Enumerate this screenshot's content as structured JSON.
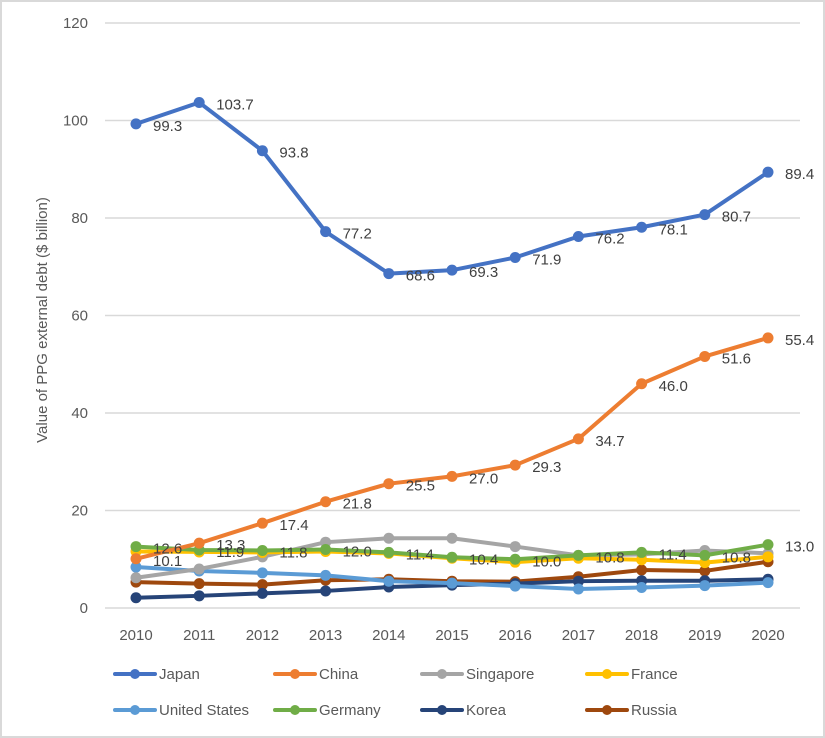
{
  "chart_data": {
    "type": "line",
    "title": "",
    "xlabel": "",
    "ylabel": "Value of PPG external debt  ($ billion)",
    "ylim": [
      0,
      120
    ],
    "yticks": [
      0,
      20,
      40,
      60,
      80,
      100,
      120
    ],
    "grid": true,
    "legend_position": "bottom",
    "x": [
      "2010",
      "2011",
      "2012",
      "2013",
      "2014",
      "2015",
      "2016",
      "2017",
      "2018",
      "2019",
      "2020"
    ],
    "series": [
      {
        "name": "Japan",
        "color": "#4472C4",
        "labeled": true,
        "values": [
          99.3,
          103.7,
          93.8,
          77.2,
          68.6,
          69.3,
          71.9,
          76.2,
          78.1,
          80.7,
          89.4
        ],
        "labels": [
          "99.3",
          "103.7",
          "93.8",
          "77.2",
          "68.6",
          "69.3",
          "71.9",
          "76.2",
          "78.1",
          "80.7",
          "89.4"
        ]
      },
      {
        "name": "China",
        "color": "#ED7D31",
        "labeled": true,
        "values": [
          10.1,
          13.3,
          17.4,
          21.8,
          25.5,
          27.0,
          29.3,
          34.7,
          46.0,
          51.6,
          55.4
        ],
        "labels": [
          "10.1",
          "13.3",
          "17.4",
          "21.8",
          "25.5",
          "27.0",
          "29.3",
          "34.7",
          "46.0",
          "51.6",
          "55.4"
        ]
      },
      {
        "name": "Singapore",
        "color": "#A5A5A5",
        "labeled": false,
        "values": [
          6.2,
          8.0,
          10.5,
          13.5,
          14.3,
          14.3,
          12.6,
          10.8,
          11.0,
          11.8,
          11.2
        ]
      },
      {
        "name": "France",
        "color": "#FFC000",
        "labeled": false,
        "values": [
          11.6,
          11.5,
          11.4,
          11.6,
          11.2,
          10.2,
          9.4,
          10.2,
          9.9,
          9.3,
          10.5
        ]
      },
      {
        "name": "United States",
        "color": "#5B9BD5",
        "labeled": false,
        "values": [
          8.4,
          7.6,
          7.2,
          6.7,
          5.5,
          5.1,
          4.5,
          3.9,
          4.2,
          4.6,
          5.2
        ]
      },
      {
        "name": "Germany",
        "color": "#70AD47",
        "labeled": true,
        "values": [
          12.6,
          11.9,
          11.8,
          12.0,
          11.4,
          10.4,
          10.0,
          10.8,
          11.4,
          10.8,
          13.0
        ],
        "labels": [
          "12.6",
          "11.9",
          "11.8",
          "12.0",
          "11.4",
          "10.4",
          "10.0",
          "10.8",
          "11.4",
          "10.8",
          "13.0"
        ]
      },
      {
        "name": "Korea",
        "color": "#264478",
        "labeled": false,
        "values": [
          2.1,
          2.5,
          3.0,
          3.5,
          4.3,
          4.7,
          5.0,
          5.5,
          5.6,
          5.6,
          5.9
        ]
      },
      {
        "name": "Russia",
        "color": "#9E480E",
        "labeled": false,
        "values": [
          5.3,
          5.0,
          4.8,
          5.7,
          5.9,
          5.5,
          5.4,
          6.4,
          7.8,
          7.6,
          9.5
        ]
      }
    ]
  }
}
